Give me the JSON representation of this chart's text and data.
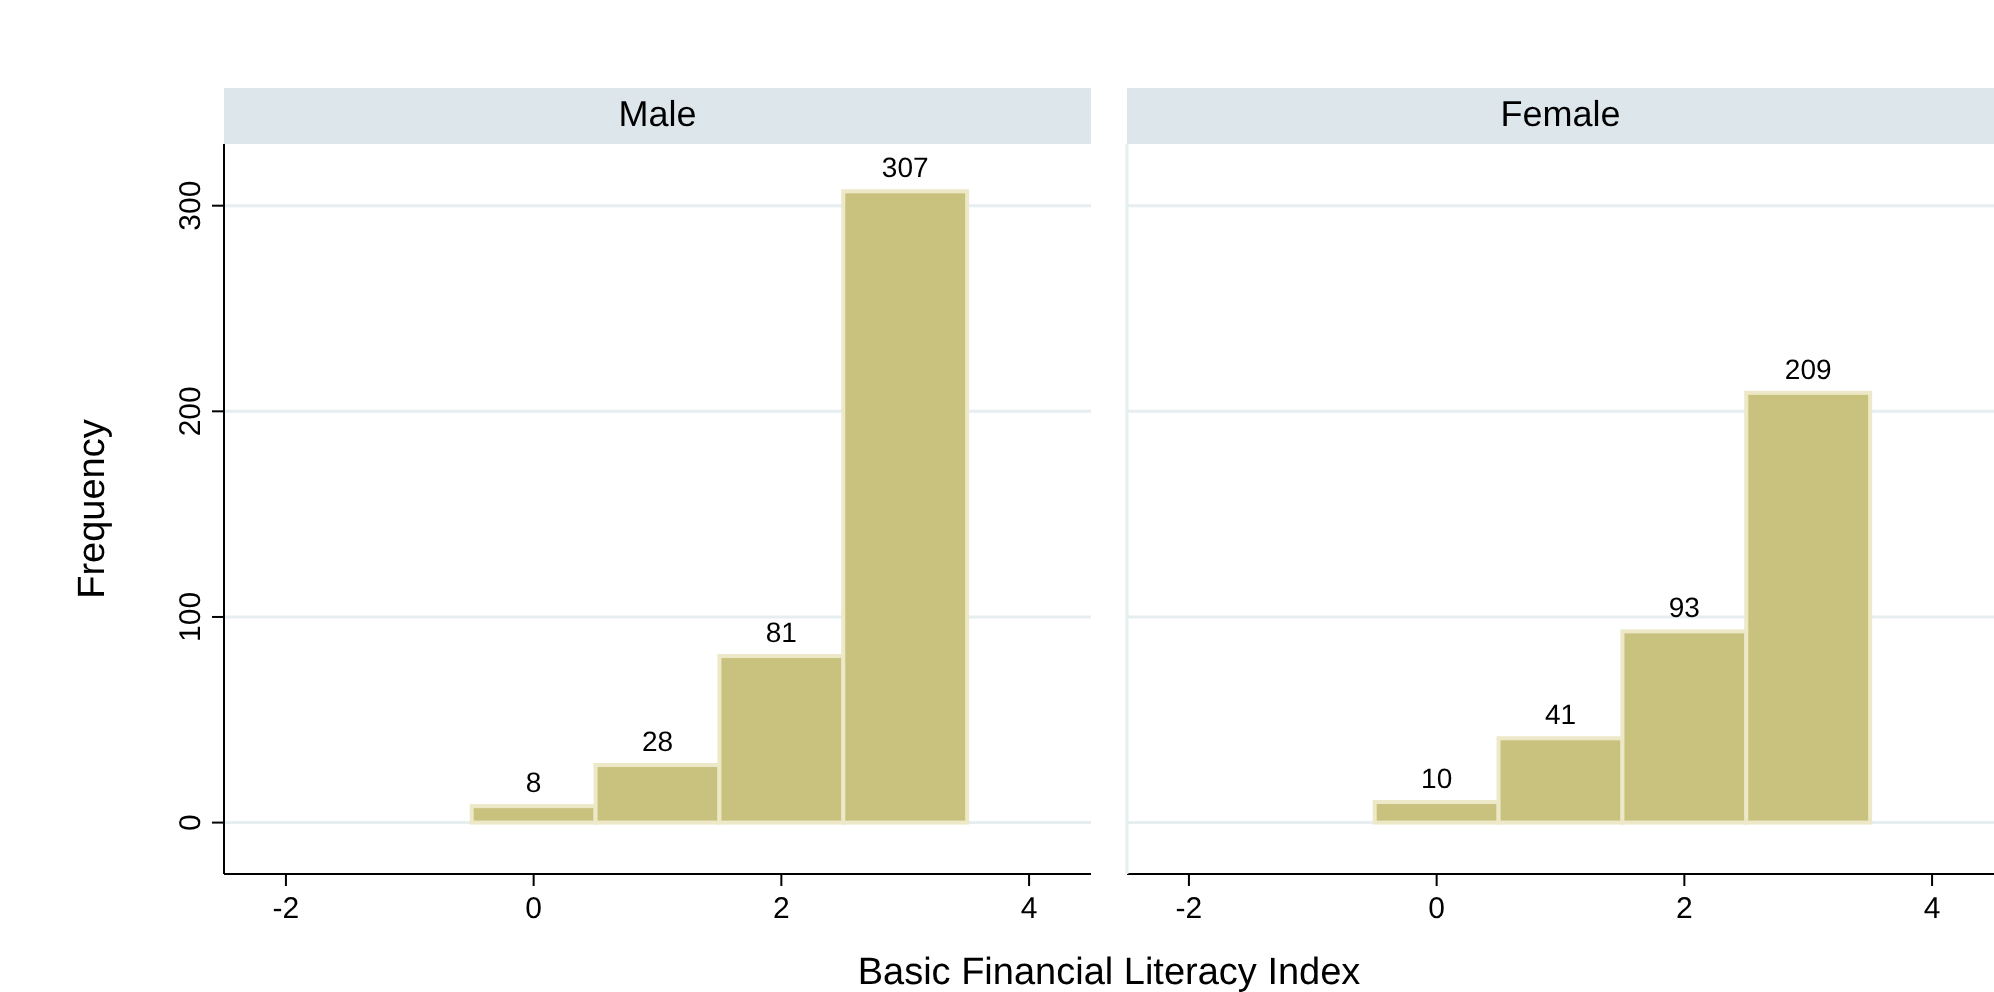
{
  "chart_data": [
    {
      "type": "histogram",
      "title": "Male",
      "xlabel": "Basic Financial Literacy Index",
      "ylabel": "Frequency",
      "bins": [
        -0.5,
        0.5,
        1.5,
        2.5,
        3.5
      ],
      "values": [
        8,
        28,
        81,
        307
      ],
      "color": "#c9c27f",
      "xlim": [
        -2.5,
        4.5
      ],
      "xticks": [
        -2,
        0,
        2,
        4
      ],
      "ylim": [
        -25,
        330
      ],
      "yticks": [
        0,
        100,
        200,
        300
      ],
      "grid": "y",
      "data_labels": true
    },
    {
      "type": "histogram",
      "title": "Female",
      "bins": [
        -0.5,
        0.5,
        1.5,
        2.5,
        3.5
      ],
      "values": [
        10,
        41,
        93,
        209
      ],
      "color": "#c9c27f",
      "xlim": [
        -2.5,
        4.5
      ],
      "xticks": [
        -2,
        0,
        2,
        4
      ],
      "ylim": [
        -25,
        330
      ],
      "yticks": [
        0,
        100,
        200,
        300
      ],
      "grid": "y",
      "data_labels": true,
      "tick_labels": "x"
    }
  ]
}
